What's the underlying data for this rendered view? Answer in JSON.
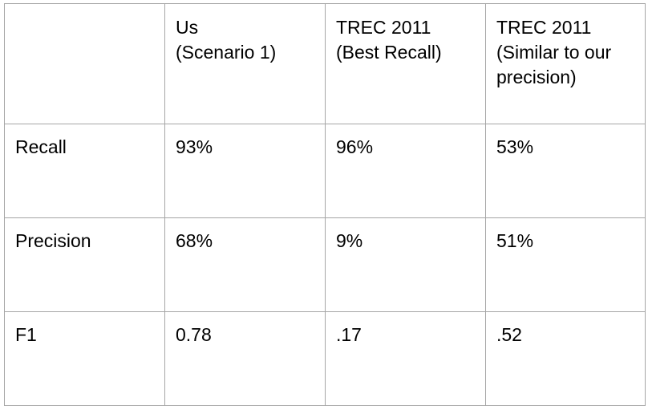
{
  "table": {
    "headers": [
      "",
      "Us\n(Scenario 1)",
      "TREC 2011\n(Best Recall)",
      "TREC 2011\n(Similar to our\nprecision)"
    ],
    "rows": [
      {
        "label": "Recall",
        "values": [
          "93%",
          "96%",
          "53%"
        ]
      },
      {
        "label": "Precision",
        "values": [
          "68%",
          "9%",
          "51%"
        ]
      },
      {
        "label": "F1",
        "values": [
          "0.78",
          ".17",
          ".52"
        ]
      }
    ]
  },
  "colors": {
    "border": "#a6a6a6",
    "text": "#000000",
    "background": "#ffffff"
  }
}
